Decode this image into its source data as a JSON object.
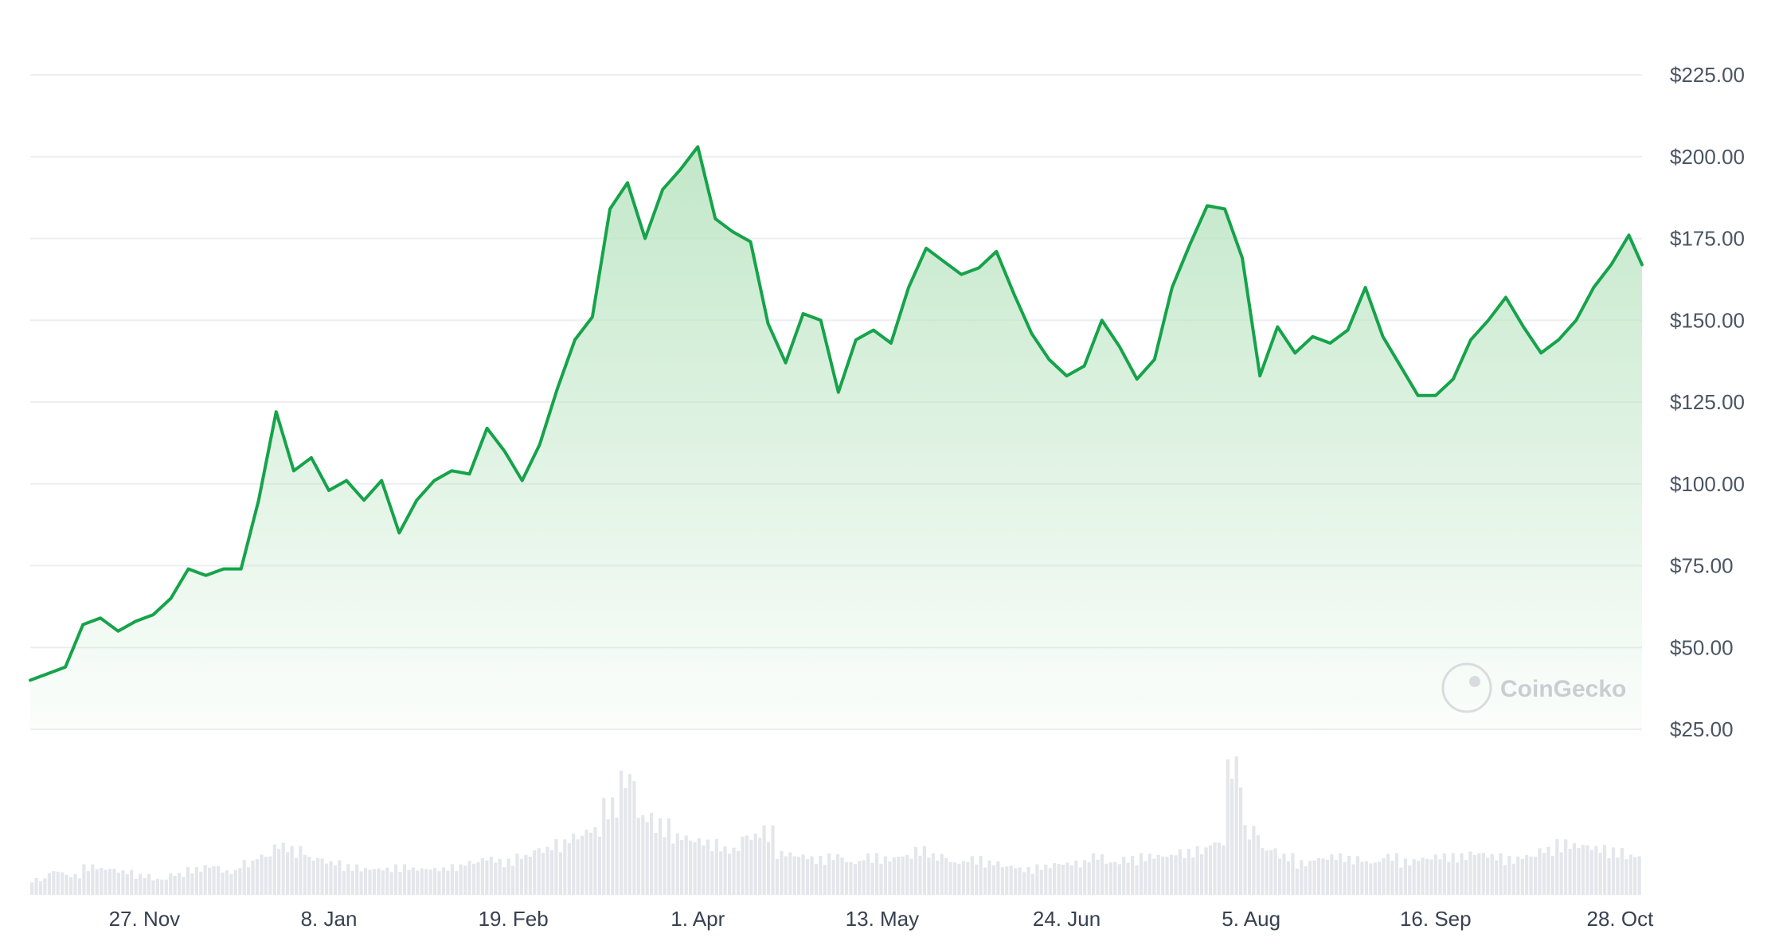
{
  "chart_data": {
    "type": "area",
    "title": "",
    "xlabel": "",
    "ylabel": "",
    "watermark": "CoinGecko",
    "y_axis": {
      "ticks": [
        25,
        50,
        75,
        100,
        125,
        150,
        175,
        200,
        225
      ],
      "tick_labels": [
        "$25.00",
        "$50.00",
        "$75.00",
        "$100.00",
        "$125.00",
        "$150.00",
        "$175.00",
        "$200.00",
        "$225.00"
      ],
      "ylim": [
        25,
        225
      ],
      "grid": true,
      "position": "right"
    },
    "x_axis": {
      "tick_labels": [
        "27. Nov",
        "8. Jan",
        "19. Feb",
        "1. Apr",
        "13. May",
        "24. Jun",
        "5. Aug",
        "16. Sep",
        "28. Oct"
      ],
      "tick_dates": [
        "2023-11-27",
        "2024-01-08",
        "2024-02-19",
        "2024-04-01",
        "2024-05-13",
        "2024-06-24",
        "2024-08-05",
        "2024-09-16",
        "2024-10-28"
      ],
      "range": [
        "2023-11-01",
        "2024-11-02"
      ]
    },
    "colors": {
      "line": "#16a34a",
      "fill_top": "#bfe6c6",
      "grid": "#eceef1",
      "volume": "#e4e6eb"
    },
    "price_series": {
      "name": "Price",
      "x": [
        "2023-11-01",
        "2023-11-05",
        "2023-11-09",
        "2023-11-13",
        "2023-11-17",
        "2023-11-21",
        "2023-11-25",
        "2023-11-29",
        "2023-12-03",
        "2023-12-07",
        "2023-12-11",
        "2023-12-15",
        "2023-12-19",
        "2023-12-23",
        "2023-12-27",
        "2023-12-31",
        "2024-01-04",
        "2024-01-08",
        "2024-01-12",
        "2024-01-16",
        "2024-01-20",
        "2024-01-24",
        "2024-01-28",
        "2024-02-01",
        "2024-02-05",
        "2024-02-09",
        "2024-02-13",
        "2024-02-17",
        "2024-02-21",
        "2024-02-25",
        "2024-02-29",
        "2024-03-04",
        "2024-03-08",
        "2024-03-12",
        "2024-03-16",
        "2024-03-20",
        "2024-03-24",
        "2024-03-28",
        "2024-04-01",
        "2024-04-05",
        "2024-04-09",
        "2024-04-13",
        "2024-04-17",
        "2024-04-21",
        "2024-04-25",
        "2024-04-29",
        "2024-05-03",
        "2024-05-07",
        "2024-05-11",
        "2024-05-15",
        "2024-05-19",
        "2024-05-23",
        "2024-05-27",
        "2024-05-31",
        "2024-06-04",
        "2024-06-08",
        "2024-06-12",
        "2024-06-16",
        "2024-06-20",
        "2024-06-24",
        "2024-06-28",
        "2024-07-02",
        "2024-07-06",
        "2024-07-10",
        "2024-07-14",
        "2024-07-18",
        "2024-07-22",
        "2024-07-26",
        "2024-07-30",
        "2024-08-03",
        "2024-08-07",
        "2024-08-11",
        "2024-08-15",
        "2024-08-19",
        "2024-08-23",
        "2024-08-27",
        "2024-08-31",
        "2024-09-04",
        "2024-09-08",
        "2024-09-12",
        "2024-09-16",
        "2024-09-20",
        "2024-09-24",
        "2024-09-28",
        "2024-10-02",
        "2024-10-06",
        "2024-10-10",
        "2024-10-14",
        "2024-10-18",
        "2024-10-22",
        "2024-10-26",
        "2024-10-30",
        "2024-11-02"
      ],
      "y": [
        40,
        42,
        44,
        57,
        59,
        55,
        58,
        60,
        65,
        74,
        72,
        74,
        74,
        95,
        122,
        104,
        108,
        98,
        101,
        95,
        101,
        85,
        95,
        101,
        104,
        103,
        117,
        110,
        101,
        112,
        129,
        144,
        151,
        184,
        192,
        175,
        190,
        196,
        203,
        181,
        177,
        174,
        149,
        137,
        152,
        150,
        128,
        144,
        147,
        143,
        160,
        172,
        168,
        164,
        166,
        171,
        158,
        146,
        138,
        133,
        136,
        150,
        142,
        132,
        138,
        160,
        173,
        185,
        184,
        169,
        133,
        148,
        140,
        145,
        143,
        147,
        160,
        145,
        136,
        127,
        127,
        132,
        144,
        150,
        157,
        148,
        140,
        144,
        150,
        160,
        167,
        176,
        167
      ]
    },
    "volume_series": {
      "name": "Volume",
      "note_visible_levels_relative": [
        0.12,
        0.18,
        0.15,
        0.22,
        0.2,
        0.18,
        0.15,
        0.12,
        0.16,
        0.2,
        0.22,
        0.18,
        0.25,
        0.3,
        0.38,
        0.35,
        0.28,
        0.25,
        0.22,
        0.2,
        0.2,
        0.22,
        0.2,
        0.2,
        0.22,
        0.25,
        0.28,
        0.26,
        0.3,
        0.35,
        0.4,
        0.45,
        0.5,
        0.7,
        0.9,
        0.6,
        0.55,
        0.45,
        0.42,
        0.4,
        0.35,
        0.45,
        0.5,
        0.32,
        0.3,
        0.28,
        0.3,
        0.25,
        0.3,
        0.28,
        0.3,
        0.35,
        0.3,
        0.25,
        0.28,
        0.25,
        0.22,
        0.2,
        0.22,
        0.24,
        0.25,
        0.3,
        0.25,
        0.28,
        0.3,
        0.3,
        0.33,
        0.35,
        0.4,
        1.0,
        0.5,
        0.35,
        0.3,
        0.25,
        0.28,
        0.3,
        0.28,
        0.25,
        0.3,
        0.26,
        0.28,
        0.3,
        0.3,
        0.32,
        0.3,
        0.28,
        0.3,
        0.35,
        0.4,
        0.38,
        0.36,
        0.34,
        0.3
      ]
    }
  }
}
